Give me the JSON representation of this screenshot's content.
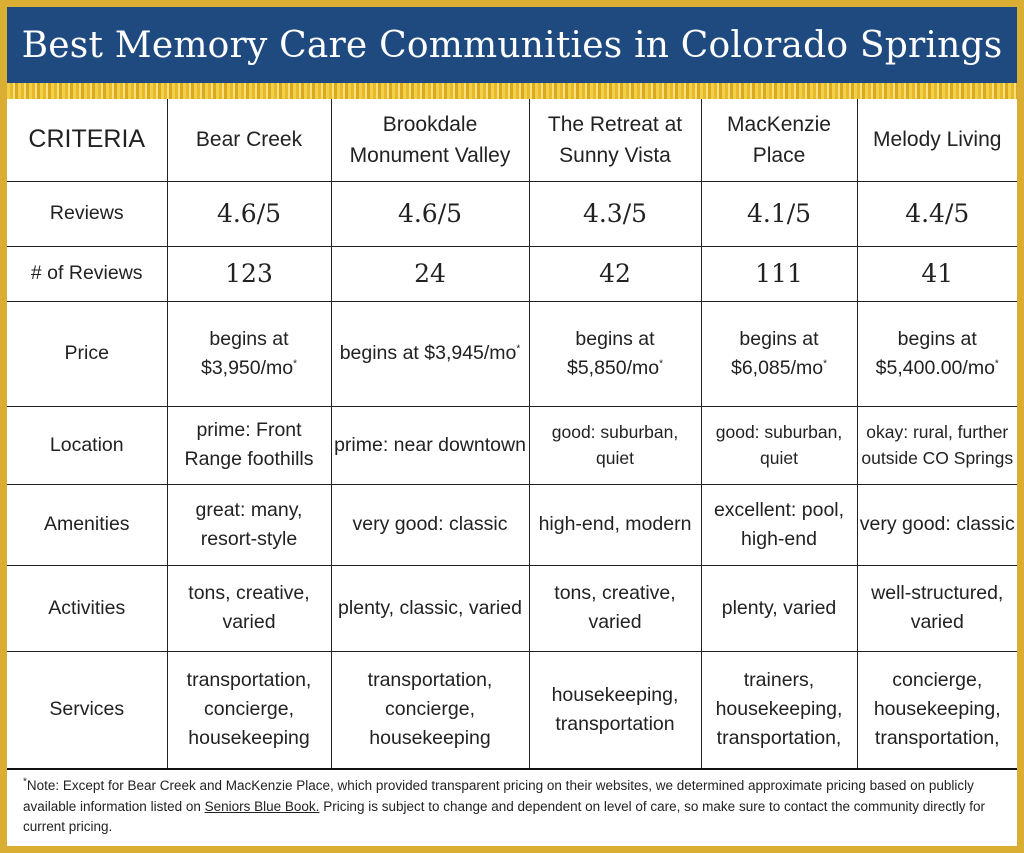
{
  "title": "Best Memory Care Communities in Colorado Springs",
  "colors": {
    "header_bg": "#1e4a7f",
    "border_gold": "#d9ae32"
  },
  "table": {
    "criteria_label": "CRITERIA",
    "communities": [
      "Bear Creek",
      "Brookdale Monument Valley",
      "The Retreat at Sunny Vista",
      "MacKenzie Place",
      "Melody Living"
    ],
    "rows": [
      {
        "label": "Reviews",
        "values": [
          "4.6/5",
          "4.6/5",
          "4.3/5",
          "4.1/5",
          "4.4/5"
        ]
      },
      {
        "label": "# of Reviews",
        "values": [
          "123",
          "24",
          "42",
          "111",
          "41"
        ]
      },
      {
        "label": "Price",
        "values": [
          "begins at $3,950/mo",
          "begins at $3,945/mo",
          "begins at $5,850/mo",
          "begins at $6,085/mo",
          "begins at $5,400.00/mo"
        ],
        "footnote_mark": "*"
      },
      {
        "label": "Location",
        "values": [
          "prime: Front Range foothills",
          "prime: near downtown",
          "good: suburban, quiet",
          "good: suburban, quiet",
          "okay: rural, further outside CO Springs"
        ]
      },
      {
        "label": "Amenities",
        "values": [
          "great: many, resort-style",
          "very good: classic",
          "high-end, modern",
          "excellent: pool, high-end",
          "very good: classic"
        ]
      },
      {
        "label": "Activities",
        "values": [
          "tons, creative, varied",
          "plenty, classic, varied",
          "tons, creative, varied",
          "plenty, varied",
          "well-structured, varied"
        ]
      },
      {
        "label": "Services",
        "values": [
          "transportation, concierge, housekeeping",
          "transportation, concierge, housekeeping",
          "housekeeping, transportation",
          "trainers, housekeeping, transportation,",
          "concierge, housekeeping, transportation,"
        ]
      }
    ]
  },
  "note": {
    "mark": "*",
    "before": "Note: Except for Bear Creek and MacKenzie Place, which provided transparent pricing on their websites, we determined approximate pricing based on publicly available information listed on ",
    "link_text": "Seniors Blue Book.",
    "after": " Pricing is subject to change and dependent on level of care, so make sure to contact the community directly for current pricing."
  }
}
